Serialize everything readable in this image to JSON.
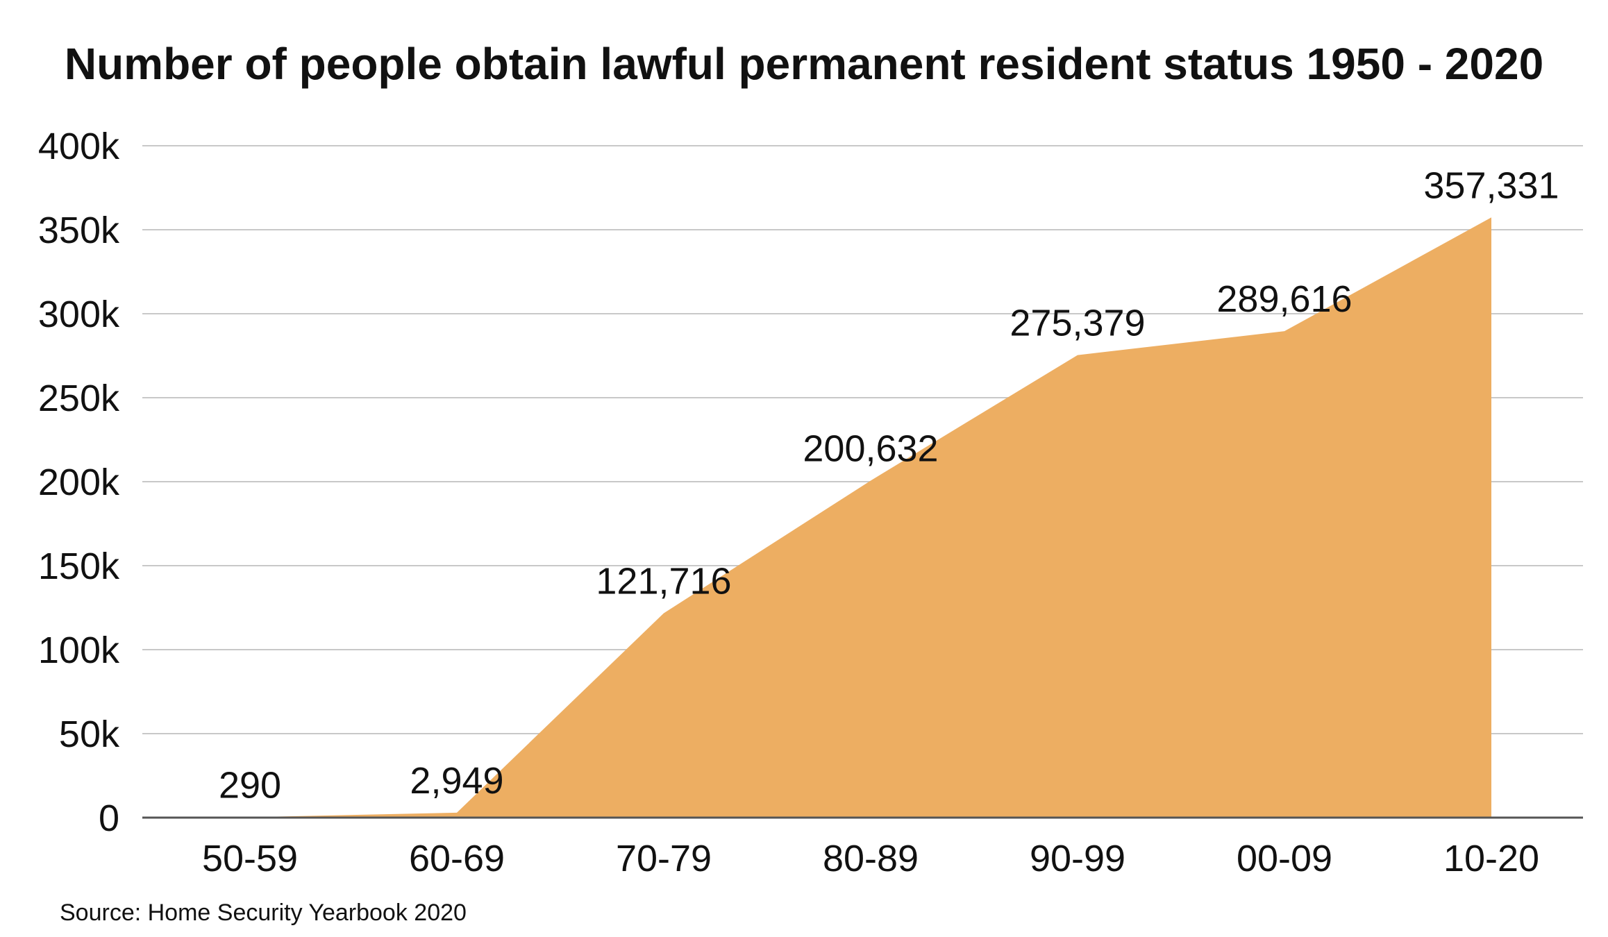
{
  "chart_data": {
    "type": "area",
    "title": "Number of people obtain lawful permanent resident status 1950 - 2020",
    "categories": [
      "50-59",
      "60-69",
      "70-79",
      "80-89",
      "90-99",
      "00-09",
      "10-20"
    ],
    "values": [
      290,
      2949,
      121716,
      200632,
      275379,
      289616,
      357331
    ],
    "value_labels": [
      "290",
      "2,949",
      "121,716",
      "200,632",
      "275,379",
      "289,616",
      "357,331"
    ],
    "y_ticks": [
      0,
      50000,
      100000,
      150000,
      200000,
      250000,
      300000,
      350000,
      400000
    ],
    "y_tick_labels": [
      "0",
      "50k",
      "100k",
      "150k",
      "200k",
      "250k",
      "300k",
      "350k",
      "400k"
    ],
    "ylim": [
      0,
      400000
    ],
    "xlabel": "",
    "ylabel": "",
    "grid": true,
    "colors": {
      "area": "#EDAE62",
      "grid": "#C8C8C8",
      "baseline": "#555555",
      "text": "#111111"
    }
  },
  "source": "Source: Home Security Yearbook 2020"
}
